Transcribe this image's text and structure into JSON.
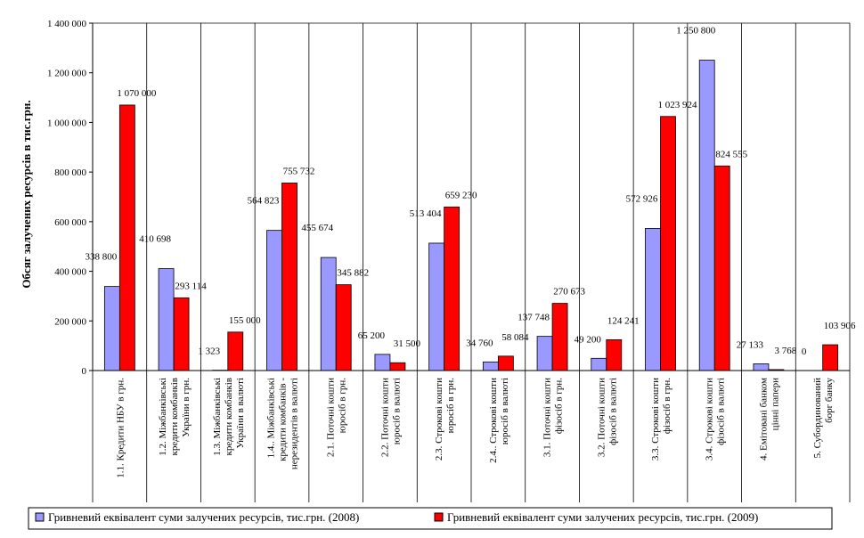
{
  "chart_data": {
    "type": "bar",
    "title": "",
    "xlabel": "",
    "ylabel": "Обсяг залучених ресурсів в тис.грн.",
    "ylim": [
      0,
      1400000
    ],
    "yticks": [
      0,
      200000,
      400000,
      600000,
      800000,
      1000000,
      1200000,
      1400000
    ],
    "ytick_labels": [
      "0",
      "200 000",
      "400 000",
      "600 000",
      "800 000",
      "1 000 000",
      "1 200 000",
      "1 400 000"
    ],
    "grid": false,
    "legend_position": "bottom",
    "categories": [
      [
        "1.1. Кредити НБУ в грн."
      ],
      [
        "1.2. Міжбанківські",
        "кредити комбанків",
        "України в грн."
      ],
      [
        "1.3. Міжбанківські",
        "кредити комбанків",
        "України в валюті"
      ],
      [
        "1.4.. Міжбанківські",
        "кредити комбанків -",
        "нерезидентів в валюті"
      ],
      [
        "2.1. Поточні кошти",
        "юросіб в грн."
      ],
      [
        "2.2. Поточні кошти",
        "юросіб в валюті"
      ],
      [
        "2.3. Строкові кошти",
        "юросіб в грн."
      ],
      [
        "2.4.. Строкові кошти",
        "юросіб в валюті"
      ],
      [
        "3.1. Поточні кошти",
        "фізосіб в грн."
      ],
      [
        "3.2. Поточні кошти",
        "фізосіб в валюті"
      ],
      [
        "3.3. Строкові кошти",
        "фізосіб в грн."
      ],
      [
        "3.4. Строкові кошти",
        "фізосіб в валюті"
      ],
      [
        "4. Емітовані банком",
        "цінні папери"
      ],
      [
        "5. Субординований",
        "борг банку"
      ]
    ],
    "series": [
      {
        "name": "Гривневий еквівалент суми залучених ресурсів, тис.грн. (2008)",
        "color": "#9999ff",
        "values": [
          338800,
          410698,
          1323,
          564823,
          455674,
          65200,
          513404,
          34760,
          137748,
          49200,
          572926,
          1250800,
          27133,
          0
        ],
        "labels": [
          "338 800",
          "410 698",
          "1 323",
          "564 823",
          "455 674",
          "65 200",
          "513 404",
          "34 760",
          "137 748",
          "49 200",
          "572 926",
          "1 250 800",
          "27 133",
          "0"
        ]
      },
      {
        "name": "Гривневий еквівалент суми залучених ресурсів, тис.грн. (2009)",
        "color": "#ff0000",
        "values": [
          1070000,
          293114,
          155000,
          755732,
          345882,
          31500,
          659230,
          58084,
          270673,
          124241,
          1023924,
          824555,
          3768,
          103906
        ],
        "labels": [
          "1 070 000",
          "293 114",
          "155 000",
          "755 732",
          "345 882",
          "31 500",
          "659 230",
          "58 084",
          "270 673",
          "124 241",
          "1 023 924",
          "824 555",
          "3 768",
          "103 906"
        ]
      }
    ]
  }
}
